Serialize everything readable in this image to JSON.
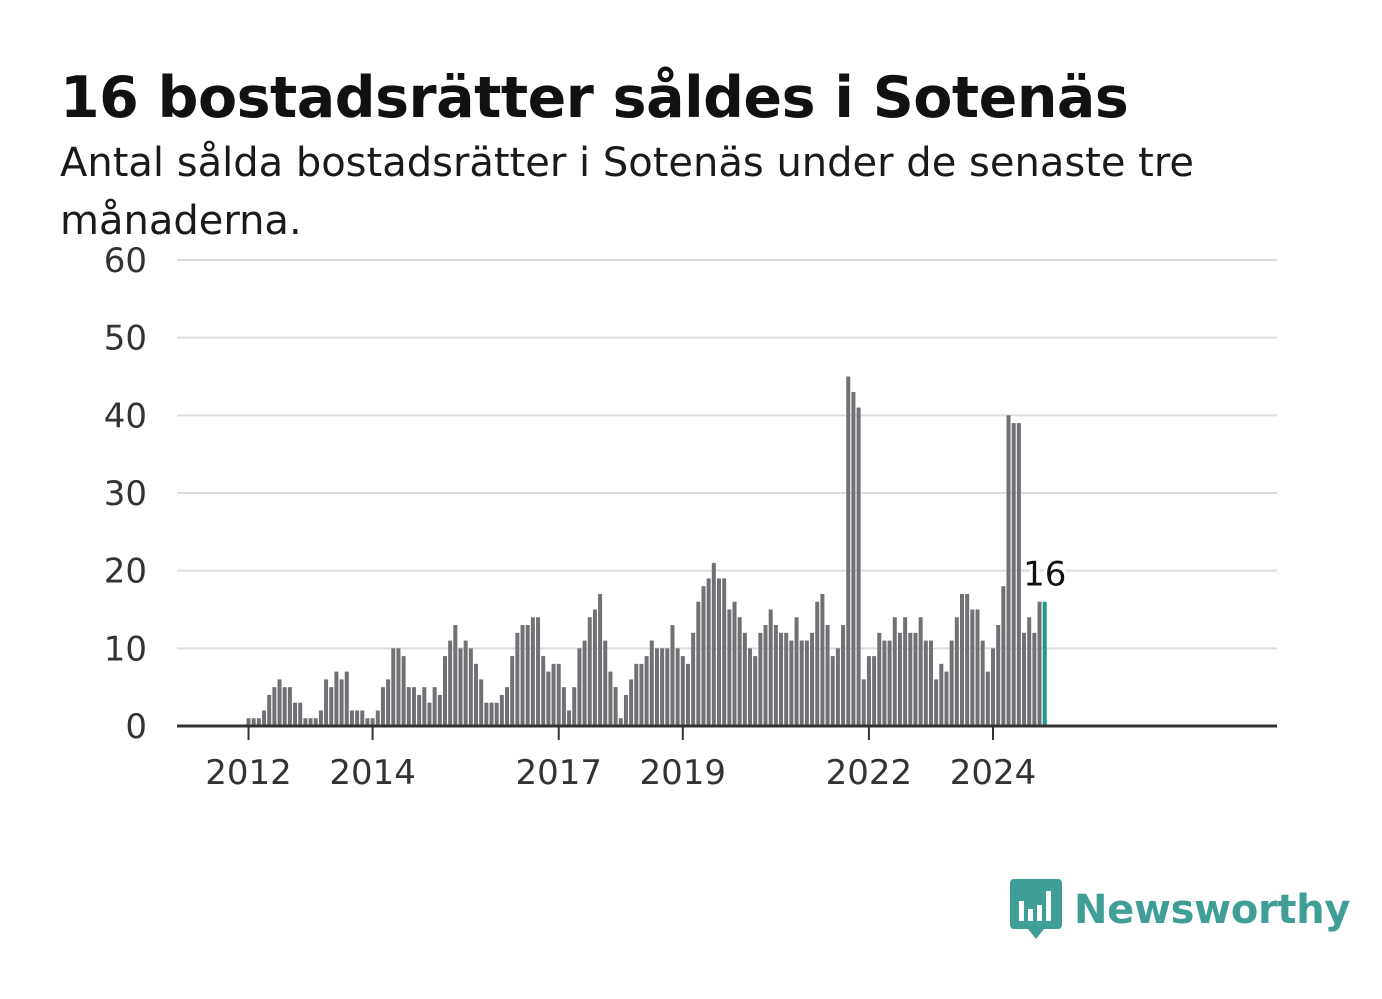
{
  "title": "16 bostadsrätter såldes i Sotenäs",
  "subtitle": "Antal sålda bostadsrätter i Sotenäs under de senaste tre månaderna.",
  "brand": {
    "name": "Newsworthy",
    "color": "#3f9f97",
    "icon": "bar-chart-speech-bubble-icon"
  },
  "colors": {
    "bar": "#717075",
    "highlight": "#1a9a8f",
    "grid": "#dddddd",
    "axis": "#333333"
  },
  "chart_data": {
    "type": "bar",
    "title": "16 bostadsrätter såldes i Sotenäs",
    "subtitle": "Antal sålda bostadsrätter i Sotenäs under de senaste tre månaderna.",
    "x_start": "2011-04",
    "interval": "month",
    "ylim": [
      0,
      60
    ],
    "yticks": [
      0,
      10,
      20,
      30,
      40,
      50,
      60
    ],
    "xtick_labels": [
      {
        "label": "2012",
        "month": "2012-01"
      },
      {
        "label": "2014",
        "month": "2014-01"
      },
      {
        "label": "2017",
        "month": "2017-01"
      },
      {
        "label": "2019",
        "month": "2019-01"
      },
      {
        "label": "2022",
        "month": "2022-01"
      },
      {
        "label": "2024",
        "month": "2024-01"
      }
    ],
    "grid": true,
    "highlight_last": true,
    "annotation": {
      "text": "16",
      "value": 16
    },
    "values": [
      0,
      0,
      0,
      0,
      0,
      0,
      0,
      0,
      0,
      1,
      1,
      1,
      2,
      4,
      5,
      6,
      5,
      5,
      3,
      3,
      1,
      1,
      1,
      2,
      6,
      5,
      7,
      6,
      7,
      2,
      2,
      2,
      1,
      1,
      2,
      5,
      6,
      10,
      10,
      9,
      5,
      5,
      4,
      5,
      3,
      5,
      4,
      9,
      11,
      13,
      10,
      11,
      10,
      8,
      6,
      3,
      3,
      3,
      4,
      5,
      9,
      12,
      13,
      13,
      14,
      14,
      9,
      7,
      8,
      8,
      5,
      2,
      5,
      10,
      11,
      14,
      15,
      17,
      11,
      7,
      5,
      1,
      4,
      6,
      8,
      8,
      9,
      11,
      10,
      10,
      10,
      13,
      10,
      9,
      8,
      12,
      16,
      18,
      19,
      21,
      19,
      19,
      15,
      16,
      14,
      12,
      10,
      9,
      12,
      13,
      15,
      13,
      12,
      12,
      11,
      14,
      11,
      11,
      12,
      16,
      17,
      13,
      9,
      10,
      13,
      45,
      43,
      41,
      6,
      9,
      9,
      12,
      11,
      11,
      14,
      12,
      14,
      12,
      12,
      14,
      11,
      11,
      6,
      8,
      7,
      11,
      14,
      17,
      17,
      15,
      15,
      11,
      7,
      10,
      13,
      18,
      40,
      39,
      39,
      12,
      14,
      12,
      16,
      16
    ]
  }
}
